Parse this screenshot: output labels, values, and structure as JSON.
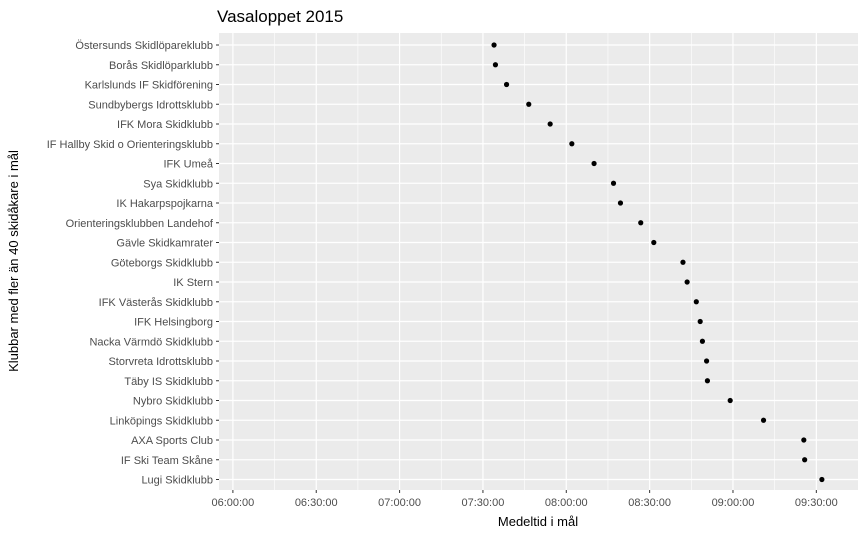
{
  "chart_data": {
    "type": "scatter",
    "title": "Vasaloppet 2015",
    "xlabel": "Medeltid i mål",
    "ylabel": "Klubbar med fler än 40 skidåkare i mål",
    "x_unit": "minutes",
    "xlim": [
      355,
      585
    ],
    "x_ticks": [
      {
        "value": 360,
        "label": "06:00:00"
      },
      {
        "value": 390,
        "label": "06:30:00"
      },
      {
        "value": 420,
        "label": "07:00:00"
      },
      {
        "value": 450,
        "label": "07:30:00"
      },
      {
        "value": 480,
        "label": "08:00:00"
      },
      {
        "value": 510,
        "label": "08:30:00"
      },
      {
        "value": 540,
        "label": "09:00:00"
      },
      {
        "value": 570,
        "label": "09:30:00"
      }
    ],
    "grid": true,
    "categories": [
      "Östersunds Skidlöpareklubb",
      "Borås Skidlöparklubb",
      "Karlslunds IF Skidförening",
      "Sundbybergs Idrottsklubb",
      "IFK Mora Skidklubb",
      "IF Hallby Skid o Orienteringsklubb",
      "IFK Umeå",
      "Sya Skidklubb",
      "IK Hakarpspojkarna",
      "Orienteringsklubben Landehof",
      "Gävle Skidkamrater",
      "Göteborgs Skidklubb",
      "IK Stern",
      "IFK Västerås Skidklubb",
      "IFK Helsingborg",
      "Nacka Värmdö Skidklubb",
      "Storvreta Idrottsklubb",
      "Täby IS Skidklubb",
      "Nybro Skidklubb",
      "Linköpings Skidklubb",
      "AXA Sports Club",
      "IF Ski Team Skåne",
      "Lugi Skidklubb"
    ],
    "values": [
      454.0,
      454.5,
      458.5,
      466.5,
      474.2,
      482.0,
      490.0,
      497.0,
      499.5,
      506.8,
      511.5,
      522.0,
      523.5,
      526.8,
      528.2,
      529.0,
      530.5,
      530.8,
      539.0,
      551.0,
      565.5,
      565.8,
      572.0
    ],
    "point_color": "#000000",
    "panel_color": "#ebebeb",
    "grid_color": "#ffffff"
  }
}
